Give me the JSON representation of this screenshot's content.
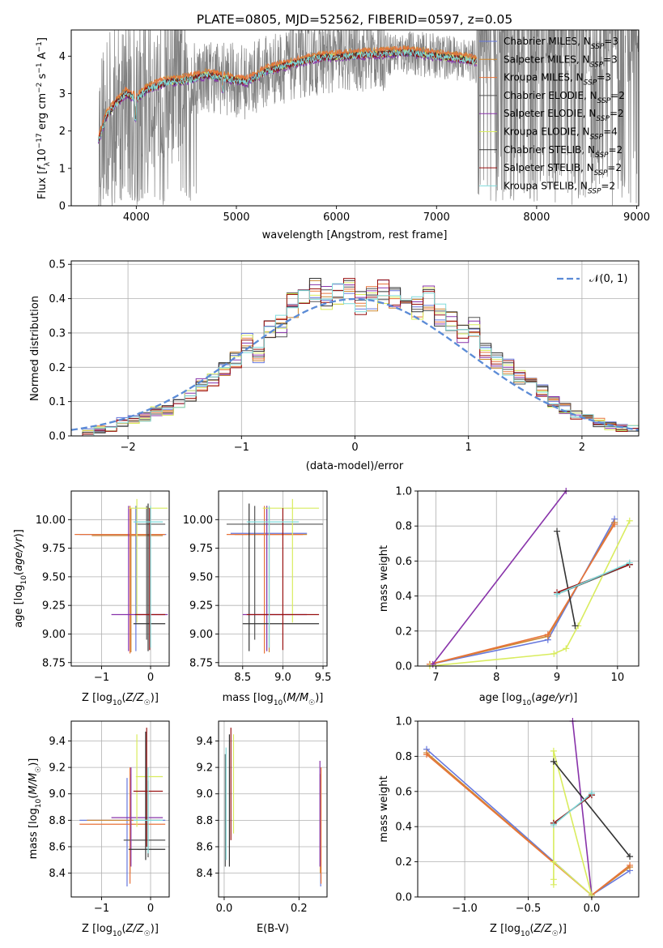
{
  "figure_title": "PLATE=0805, MJD=52562, FIBERID=0597, z=0.05",
  "colors": {
    "spectrum_data": "#808080",
    "series": [
      "#6677dd",
      "#cc8833",
      "#e8733a",
      "#555555",
      "#8833aa",
      "#d9ec5e",
      "#333333",
      "#991111",
      "#7fdbdb"
    ],
    "gaussian": "#5b8bd6"
  },
  "chart_data": [
    {
      "id": "spectrum",
      "type": "line",
      "xlabel": "wavelength [Angstrom, rest frame]",
      "ylabel": "Flux [f_λ 10^-17 erg cm^-2 s^-1 A^-1]",
      "xlim": [
        3350,
        9020
      ],
      "ylim": [
        0,
        4.7
      ],
      "xticks": [
        4000,
        5000,
        6000,
        7000,
        8000,
        9000
      ],
      "yticks": [
        0,
        1,
        2,
        3,
        4
      ],
      "grid": false,
      "legend_position": "top-right",
      "legend": [
        {
          "sym": "Chabrier MILES",
          "n": "3"
        },
        {
          "sym": "Salpeter MILES",
          "n": "3"
        },
        {
          "sym": "Kroupa MILES",
          "n": "3"
        },
        {
          "sym": "Chabrier ELODIE",
          "n": "2"
        },
        {
          "sym": "Salpeter ELODIE",
          "n": "2"
        },
        {
          "sym": "Kroupa ELODIE",
          "n": "4"
        },
        {
          "sym": "Chabrier STELIB",
          "n": "2"
        },
        {
          "sym": "Salpeter STELIB",
          "n": "2"
        },
        {
          "sym": "Kroupa STELIB",
          "n": "2"
        }
      ],
      "continuum_profile": {
        "x": [
          3630,
          3700,
          3800,
          3900,
          4000,
          4100,
          4300,
          4500,
          4700,
          4900,
          5100,
          5300,
          5500,
          5800,
          6100,
          6400,
          6700,
          7000,
          7200,
          7400
        ],
        "y": [
          1.8,
          2.4,
          2.75,
          3.0,
          2.85,
          3.1,
          3.3,
          3.35,
          3.5,
          3.4,
          3.3,
          3.6,
          3.75,
          3.95,
          4.0,
          4.05,
          4.1,
          4.0,
          3.95,
          3.85
        ]
      }
    },
    {
      "id": "residuals",
      "type": "histogram",
      "xlabel": "(data-model)/error",
      "ylabel": "Normed distribution",
      "xlim": [
        -2.5,
        2.5
      ],
      "ylim": [
        0,
        0.51
      ],
      "xticks": [
        -2,
        -1,
        0,
        1,
        2
      ],
      "yticks": [
        0,
        0.1,
        0.2,
        0.3,
        0.4,
        0.5
      ],
      "grid": true,
      "legend_position": "top-right",
      "legend_label": "𝒩(0, 1)",
      "bin_edges": [
        -2.5,
        -2.4,
        -2.3,
        -2.2,
        -2.1,
        -2.0,
        -1.9,
        -1.8,
        -1.7,
        -1.6,
        -1.5,
        -1.4,
        -1.3,
        -1.2,
        -1.1,
        -1.0,
        -0.9,
        -0.8,
        -0.7,
        -0.6,
        -0.5,
        -0.4,
        -0.3,
        -0.2,
        -0.1,
        0.0,
        0.1,
        0.2,
        0.3,
        0.4,
        0.5,
        0.6,
        0.7,
        0.8,
        0.9,
        1.0,
        1.1,
        1.2,
        1.3,
        1.4,
        1.5,
        1.6,
        1.7,
        1.8,
        1.9,
        2.0,
        2.1,
        2.2,
        2.3,
        2.4,
        2.5
      ],
      "mean_heights": [
        0.01,
        0.01,
        0.02,
        0.025,
        0.04,
        0.05,
        0.055,
        0.07,
        0.075,
        0.09,
        0.12,
        0.15,
        0.16,
        0.2,
        0.22,
        0.27,
        0.24,
        0.31,
        0.32,
        0.38,
        0.39,
        0.42,
        0.4,
        0.41,
        0.42,
        0.39,
        0.4,
        0.42,
        0.41,
        0.39,
        0.37,
        0.4,
        0.35,
        0.33,
        0.3,
        0.32,
        0.25,
        0.22,
        0.2,
        0.17,
        0.15,
        0.13,
        0.1,
        0.08,
        0.06,
        0.055,
        0.04,
        0.03,
        0.025,
        0.02
      ]
    },
    {
      "id": "age-vs-Z",
      "type": "scatter",
      "xlabel": "Z [log10(Z/Z☉)]",
      "ylabel": "age  [log10(age/yr)]",
      "xlim": [
        -1.62,
        0.38
      ],
      "ylim": [
        8.72,
        10.25
      ],
      "xticks": [
        -1,
        0
      ],
      "yticks": [
        8.75,
        9.0,
        9.25,
        9.5,
        9.75,
        10.0
      ],
      "grid": true,
      "points": [
        {
          "s": 0,
          "x": -0.3,
          "y": 9.87,
          "xlo": -1.45,
          "xhi": 0.32,
          "ylo": 8.85,
          "yhi": 10.12
        },
        {
          "s": 1,
          "x": -0.4,
          "y": 9.86,
          "xlo": -1.2,
          "xhi": 0.25,
          "ylo": 8.84,
          "yhi": 10.1
        },
        {
          "s": 2,
          "x": -0.42,
          "y": 9.87,
          "xlo": -1.55,
          "xhi": 0.3,
          "ylo": 8.83,
          "yhi": 10.12
        },
        {
          "s": 3,
          "x": -0.08,
          "y": 9.96,
          "xlo": -0.3,
          "xhi": 0.3,
          "ylo": 8.95,
          "yhi": 10.12
        },
        {
          "s": 4,
          "x": -0.45,
          "y": 9.17,
          "xlo": -0.8,
          "xhi": 0.35,
          "ylo": 8.85,
          "yhi": 10.12
        },
        {
          "s": 5,
          "x": -0.28,
          "y": 10.1,
          "xlo": -0.45,
          "xhi": 0.35,
          "ylo": 9.1,
          "yhi": 10.18
        },
        {
          "s": 6,
          "x": -0.05,
          "y": 9.09,
          "xlo": -0.35,
          "xhi": 0.3,
          "ylo": 8.85,
          "yhi": 10.14
        },
        {
          "s": 7,
          "x": -0.02,
          "y": 9.17,
          "xlo": -0.32,
          "xhi": 0.3,
          "ylo": 8.86,
          "yhi": 10.1
        },
        {
          "s": 8,
          "x": 0.0,
          "y": 9.98,
          "xlo": -0.35,
          "xhi": 0.25,
          "ylo": 8.88,
          "yhi": 10.12
        }
      ]
    },
    {
      "id": "age-vs-mass",
      "type": "scatter",
      "xlabel": "mass [log10(M/M☉)]",
      "ylabel": "",
      "xlim": [
        8.2,
        9.55
      ],
      "ylim": [
        8.72,
        10.25
      ],
      "xticks": [
        8.5,
        9.0,
        9.5
      ],
      "yticks": [
        8.75,
        9.0,
        9.25,
        9.5,
        9.75,
        10.0
      ],
      "grid": true,
      "points": [
        {
          "s": 0,
          "x": 8.8,
          "y": 9.88,
          "xlo": 8.35,
          "xhi": 9.3,
          "ylo": 8.85,
          "yhi": 10.12
        },
        {
          "s": 1,
          "x": 8.83,
          "y": 9.87,
          "xlo": 8.4,
          "xhi": 9.3,
          "ylo": 8.84,
          "yhi": 10.11
        },
        {
          "s": 2,
          "x": 8.77,
          "y": 9.87,
          "xlo": 8.3,
          "xhi": 9.25,
          "ylo": 8.83,
          "yhi": 10.12
        },
        {
          "s": 3,
          "x": 8.65,
          "y": 9.96,
          "xlo": 8.3,
          "xhi": 9.5,
          "ylo": 8.95,
          "yhi": 10.12
        },
        {
          "s": 4,
          "x": 8.8,
          "y": 9.17,
          "xlo": 8.5,
          "xhi": 9.3,
          "ylo": 8.85,
          "yhi": 10.12
        },
        {
          "s": 5,
          "x": 9.12,
          "y": 10.1,
          "xlo": 8.75,
          "xhi": 9.45,
          "ylo": 9.1,
          "yhi": 10.18
        },
        {
          "s": 6,
          "x": 8.58,
          "y": 9.09,
          "xlo": 8.5,
          "xhi": 9.45,
          "ylo": 8.85,
          "yhi": 10.14
        },
        {
          "s": 7,
          "x": 9.0,
          "y": 9.17,
          "xlo": 8.55,
          "xhi": 9.45,
          "ylo": 8.86,
          "yhi": 10.1
        },
        {
          "s": 8,
          "x": 8.83,
          "y": 9.98,
          "xlo": 8.55,
          "xhi": 9.2,
          "ylo": 8.88,
          "yhi": 10.12
        }
      ]
    },
    {
      "id": "weight-vs-age",
      "type": "line",
      "xlabel": "age  [log10(age/yr)]",
      "ylabel": "mass weight",
      "xlim": [
        6.7,
        10.35
      ],
      "ylim": [
        0,
        1.0
      ],
      "xticks": [
        7,
        8,
        9,
        10
      ],
      "yticks": [
        0.0,
        0.2,
        0.4,
        0.6,
        0.8,
        1.0
      ],
      "grid": true,
      "series": [
        {
          "s": 0,
          "x": [
            6.9,
            8.85,
            9.95
          ],
          "y": [
            0.01,
            0.15,
            0.84
          ]
        },
        {
          "s": 1,
          "x": [
            6.9,
            8.85,
            9.95
          ],
          "y": [
            0.01,
            0.17,
            0.82
          ]
        },
        {
          "s": 2,
          "x": [
            6.9,
            8.85,
            9.95
          ],
          "y": [
            0.01,
            0.18,
            0.81
          ]
        },
        {
          "s": 3,
          "x": [
            9.0,
            10.2
          ],
          "y": [
            0.41,
            0.58
          ]
        },
        {
          "s": 4,
          "x": [
            6.95,
            9.15
          ],
          "y": [
            0.01,
            1.0
          ]
        },
        {
          "s": 5,
          "x": [
            6.9,
            8.95,
            9.15,
            9.35,
            10.2
          ],
          "y": [
            0.0,
            0.07,
            0.1,
            0.23,
            0.83
          ]
        },
        {
          "s": 6,
          "x": [
            9.0,
            9.3
          ],
          "y": [
            0.77,
            0.23
          ]
        },
        {
          "s": 7,
          "x": [
            9.0,
            10.2
          ],
          "y": [
            0.42,
            0.58
          ]
        },
        {
          "s": 8,
          "x": [
            9.0,
            10.2
          ],
          "y": [
            0.41,
            0.59
          ]
        }
      ]
    },
    {
      "id": "mass-vs-Z",
      "type": "scatter",
      "xlabel": "Z [log10(Z/Z☉)]",
      "ylabel": "mass [log10(M/M☉)]",
      "xlim": [
        -1.62,
        0.38
      ],
      "ylim": [
        8.22,
        9.55
      ],
      "xticks": [
        -1,
        0
      ],
      "yticks": [
        8.4,
        8.6,
        8.8,
        9.0,
        9.2,
        9.4
      ],
      "grid": true,
      "points": [
        {
          "s": 0,
          "x": -0.48,
          "y": 8.8,
          "xlo": -1.45,
          "xhi": 0.3,
          "ylo": 8.3,
          "yhi": 9.12
        },
        {
          "s": 1,
          "x": -0.42,
          "y": 8.8,
          "xlo": -1.3,
          "xhi": 0.2,
          "ylo": 8.4,
          "yhi": 9.15
        },
        {
          "s": 2,
          "x": -0.42,
          "y": 8.77,
          "xlo": -1.45,
          "xhi": 0.3,
          "ylo": 8.32,
          "yhi": 9.2
        },
        {
          "s": 3,
          "x": -0.05,
          "y": 8.65,
          "xlo": -0.55,
          "xhi": 0.3,
          "ylo": 8.52,
          "yhi": 9.1
        },
        {
          "s": 4,
          "x": -0.4,
          "y": 8.82,
          "xlo": -0.8,
          "xhi": 0.25,
          "ylo": 8.45,
          "yhi": 9.2
        },
        {
          "s": 5,
          "x": -0.28,
          "y": 9.13,
          "xlo": -0.3,
          "xhi": 0.25,
          "ylo": 8.75,
          "yhi": 9.45
        },
        {
          "s": 6,
          "x": -0.1,
          "y": 8.58,
          "xlo": -0.45,
          "xhi": 0.3,
          "ylo": 8.5,
          "yhi": 9.47
        },
        {
          "s": 7,
          "x": -0.08,
          "y": 9.02,
          "xlo": -0.35,
          "xhi": 0.25,
          "ylo": 8.6,
          "yhi": 9.5
        },
        {
          "s": 8,
          "x": -0.05,
          "y": 8.8,
          "xlo": -0.35,
          "xhi": 0.25,
          "ylo": 8.55,
          "yhi": 9.2
        }
      ]
    },
    {
      "id": "mass-vs-EBV",
      "type": "scatter",
      "xlabel": "E(B-V)",
      "ylabel": "",
      "xlim": [
        -0.015,
        0.275
      ],
      "ylim": [
        8.22,
        9.55
      ],
      "xticks": [
        0.0,
        0.2
      ],
      "yticks": [
        8.4,
        8.6,
        8.8,
        9.0,
        9.2,
        9.4
      ],
      "grid": true,
      "points": [
        {
          "s": 0,
          "x": 0.258,
          "y": 8.8,
          "ylo": 8.3,
          "yhi": 9.12
        },
        {
          "s": 1,
          "x": 0.257,
          "y": 8.8,
          "ylo": 8.4,
          "yhi": 9.15
        },
        {
          "s": 2,
          "x": 0.259,
          "y": 8.77,
          "ylo": 8.32,
          "yhi": 9.2
        },
        {
          "s": 3,
          "x": 0.003,
          "y": 8.95,
          "ylo": 8.45,
          "yhi": 9.3
        },
        {
          "s": 4,
          "x": 0.256,
          "y": 8.95,
          "ylo": 8.45,
          "yhi": 9.25
        },
        {
          "s": 5,
          "x": 0.025,
          "y": 9.1,
          "ylo": 8.7,
          "yhi": 9.45
        },
        {
          "s": 6,
          "x": 0.014,
          "y": 8.9,
          "ylo": 8.45,
          "yhi": 9.45
        },
        {
          "s": 7,
          "x": 0.018,
          "y": 9.1,
          "ylo": 8.65,
          "yhi": 9.5
        },
        {
          "s": 8,
          "x": 0.005,
          "y": 8.95,
          "ylo": 8.5,
          "yhi": 9.35
        }
      ]
    },
    {
      "id": "weight-vs-Z",
      "type": "line",
      "xlabel": "Z [log10(Z/Z☉)]",
      "ylabel": "mass weight",
      "xlim": [
        -1.37,
        0.37
      ],
      "ylim": [
        0,
        1.0
      ],
      "xticks": [
        -1.0,
        -0.5,
        0.0
      ],
      "yticks": [
        0.0,
        0.2,
        0.4,
        0.6,
        0.8,
        1.0
      ],
      "grid": true,
      "series": [
        {
          "s": 0,
          "x": [
            -1.3,
            0.0,
            0.3
          ],
          "y": [
            0.84,
            0.01,
            0.15
          ]
        },
        {
          "s": 1,
          "x": [
            -1.3,
            0.0,
            0.3
          ],
          "y": [
            0.82,
            0.01,
            0.17
          ]
        },
        {
          "s": 2,
          "x": [
            -1.3,
            0.0,
            0.3
          ],
          "y": [
            0.81,
            0.01,
            0.18
          ]
        },
        {
          "s": 3,
          "x": [
            -0.3,
            0.0
          ],
          "y": [
            0.42,
            0.58
          ]
        },
        {
          "s": 4,
          "x": [
            -0.15,
            0.0
          ],
          "y": [
            1.0,
            0.01
          ]
        },
        {
          "s": 5,
          "x": [
            -0.3,
            -0.3,
            -0.3,
            0.0,
            -0.3
          ],
          "y": [
            0.07,
            0.1,
            0.83,
            0.01,
            0.2
          ]
        },
        {
          "s": 6,
          "x": [
            -0.3,
            0.3
          ],
          "y": [
            0.77,
            0.23
          ]
        },
        {
          "s": 7,
          "x": [
            -0.3,
            0.0
          ],
          "y": [
            0.42,
            0.58
          ]
        },
        {
          "s": 8,
          "x": [
            -0.3,
            0.0
          ],
          "y": [
            0.41,
            0.59
          ]
        }
      ]
    }
  ]
}
